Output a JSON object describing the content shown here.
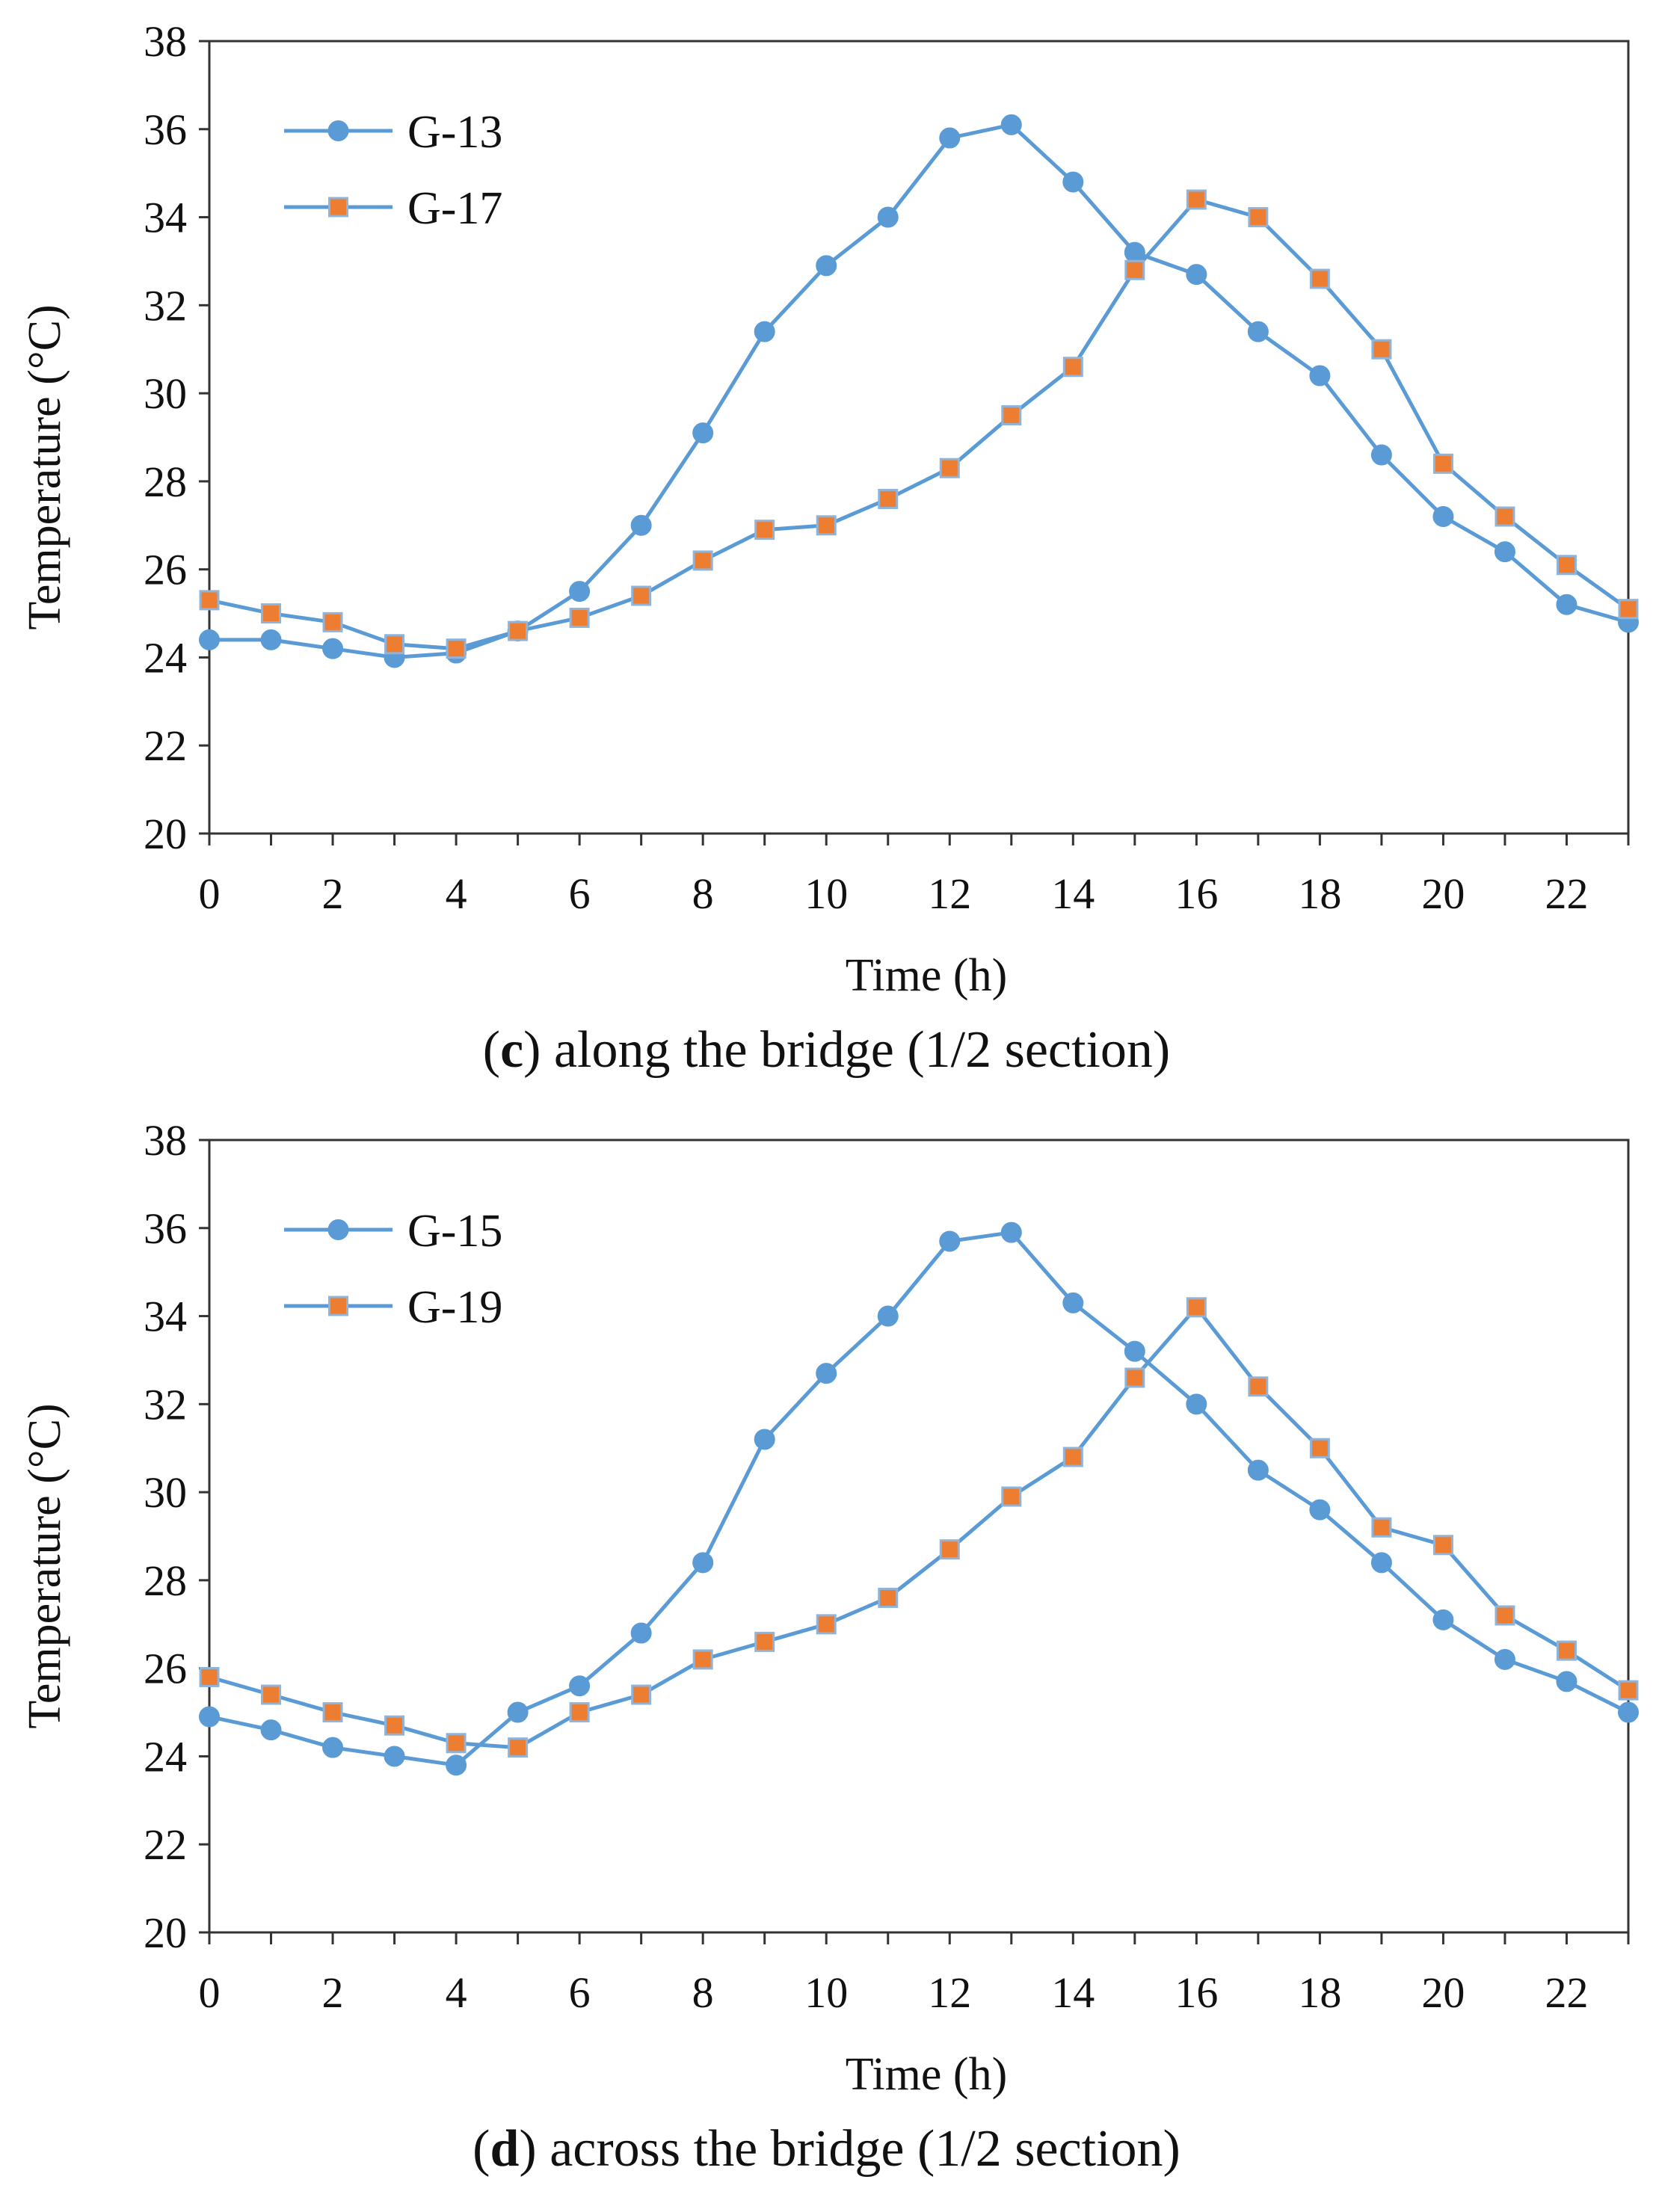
{
  "colors": {
    "series_line": "#5b9bd5",
    "marker_fill_circle": "#5b9bd5",
    "marker_fill_square": "#ed7d31",
    "marker_edge": "#5b9bd5",
    "axis": "#333333"
  },
  "chart_data": [
    {
      "type": "line",
      "panel_letter": "c",
      "caption": ") along the bridge (1/2 section)",
      "xlabel": "Time (h)",
      "ylabel": "Temperature (°C)",
      "xlim": [
        0,
        23
      ],
      "ylim": [
        20,
        38
      ],
      "xticks": [
        0,
        2,
        4,
        6,
        8,
        10,
        12,
        14,
        16,
        18,
        20,
        22
      ],
      "yticks": [
        20,
        22,
        24,
        26,
        28,
        30,
        32,
        34,
        36,
        38
      ],
      "legend_position": "top-left",
      "x": [
        0,
        1,
        2,
        3,
        4,
        5,
        6,
        7,
        8,
        9,
        10,
        11,
        12,
        13,
        14,
        15,
        16,
        17,
        18,
        19,
        20,
        21,
        22,
        23
      ],
      "series": [
        {
          "name": "G-13",
          "marker": "circle",
          "values": [
            24.4,
            24.4,
            24.2,
            24.0,
            24.1,
            24.6,
            25.5,
            27.0,
            29.1,
            31.4,
            32.9,
            34.0,
            35.8,
            36.1,
            34.8,
            33.2,
            32.7,
            31.4,
            30.4,
            28.6,
            27.2,
            26.4,
            25.2,
            24.8
          ]
        },
        {
          "name": "G-17",
          "marker": "square",
          "values": [
            25.3,
            25.0,
            24.8,
            24.3,
            24.2,
            24.6,
            24.9,
            25.4,
            26.2,
            26.9,
            27.0,
            27.6,
            28.3,
            29.5,
            30.6,
            32.8,
            34.4,
            34.0,
            32.6,
            31.0,
            28.4,
            27.2,
            26.1,
            25.1
          ]
        }
      ]
    },
    {
      "type": "line",
      "panel_letter": "d",
      "caption": ") across the bridge (1/2 section)",
      "xlabel": "Time (h)",
      "ylabel": "Temperature (°C)",
      "xlim": [
        0,
        23
      ],
      "ylim": [
        20,
        38
      ],
      "xticks": [
        0,
        2,
        4,
        6,
        8,
        10,
        12,
        14,
        16,
        18,
        20,
        22
      ],
      "yticks": [
        20,
        22,
        24,
        26,
        28,
        30,
        32,
        34,
        36,
        38
      ],
      "legend_position": "top-left",
      "x": [
        0,
        1,
        2,
        3,
        4,
        5,
        6,
        7,
        8,
        9,
        10,
        11,
        12,
        13,
        14,
        15,
        16,
        17,
        18,
        19,
        20,
        21,
        22,
        23
      ],
      "series": [
        {
          "name": "G-15",
          "marker": "circle",
          "values": [
            24.9,
            24.6,
            24.2,
            24.0,
            23.8,
            25.0,
            25.6,
            26.8,
            28.4,
            31.2,
            32.7,
            34.0,
            35.7,
            35.9,
            34.3,
            33.2,
            32.0,
            30.5,
            29.6,
            28.4,
            27.1,
            26.2,
            25.7,
            25.0
          ]
        },
        {
          "name": "G-19",
          "marker": "square",
          "values": [
            25.8,
            25.4,
            25.0,
            24.7,
            24.3,
            24.2,
            25.0,
            25.4,
            26.2,
            26.6,
            27.0,
            27.6,
            28.7,
            29.9,
            30.8,
            32.6,
            34.2,
            32.4,
            31.0,
            29.2,
            28.8,
            27.2,
            26.4,
            25.5
          ]
        }
      ]
    }
  ]
}
